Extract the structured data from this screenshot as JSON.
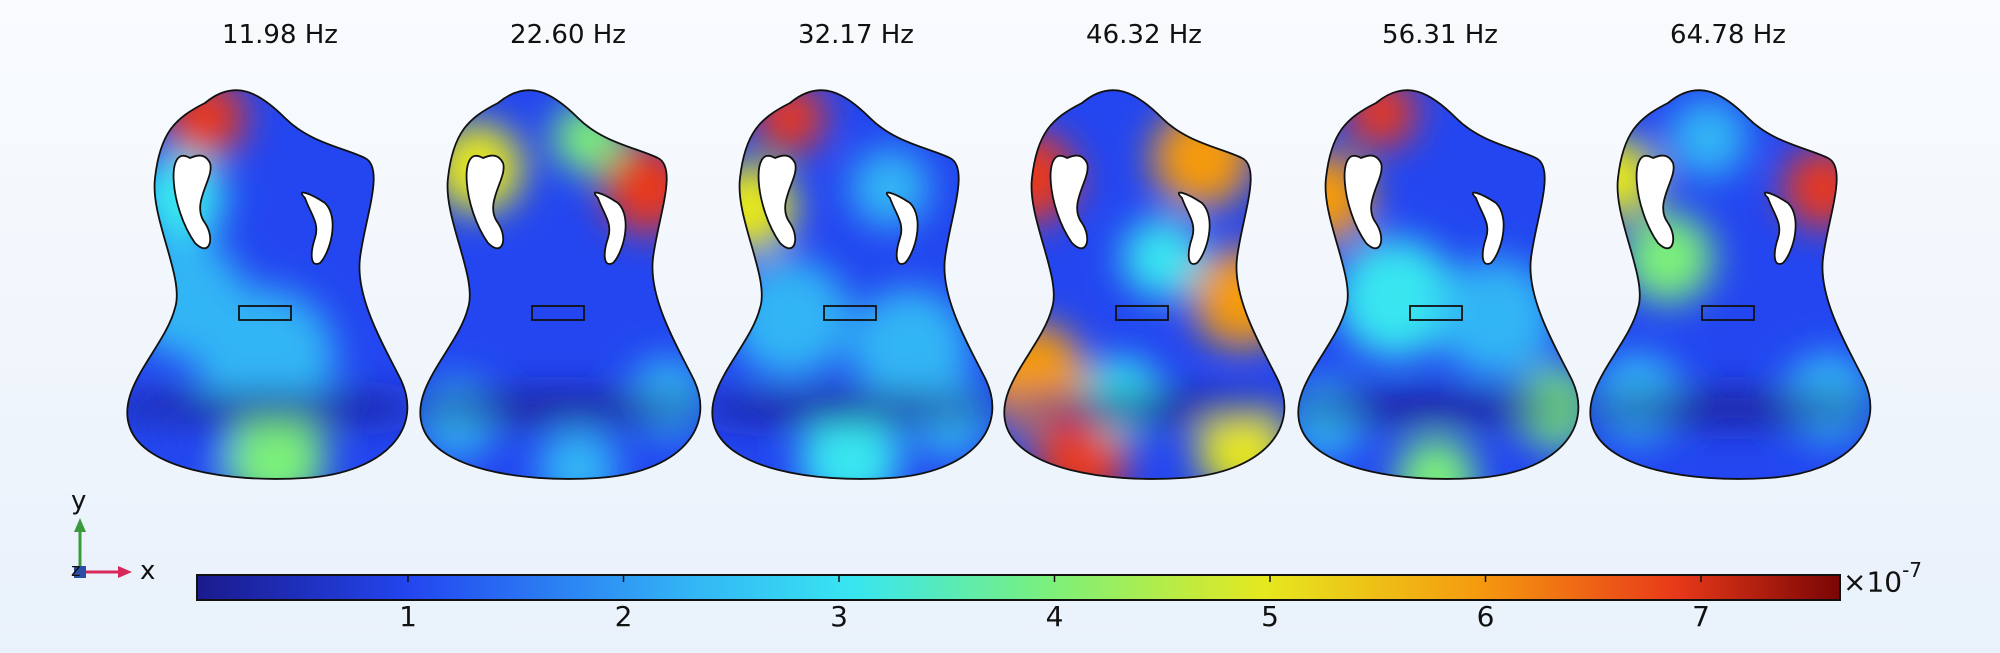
{
  "modes": [
    {
      "frequency": "11.98 Hz"
    },
    {
      "frequency": "22.60 Hz"
    },
    {
      "frequency": "32.17 Hz"
    },
    {
      "frequency": "46.32 Hz"
    },
    {
      "frequency": "56.31 Hz"
    },
    {
      "frequency": "64.78 Hz"
    }
  ],
  "colorbar": {
    "ticks": [
      "1",
      "2",
      "3",
      "4",
      "5",
      "6",
      "7"
    ],
    "multiplier": "×10",
    "exponent": "-7",
    "colormap": [
      "#1a1a8c",
      "#2346f0",
      "#33b5f5",
      "#38e6f0",
      "#7cf07a",
      "#e6e81e",
      "#f59a0f",
      "#e8391a",
      "#7a0505"
    ]
  },
  "axes": {
    "x": "x",
    "y": "y",
    "z": "z"
  }
}
